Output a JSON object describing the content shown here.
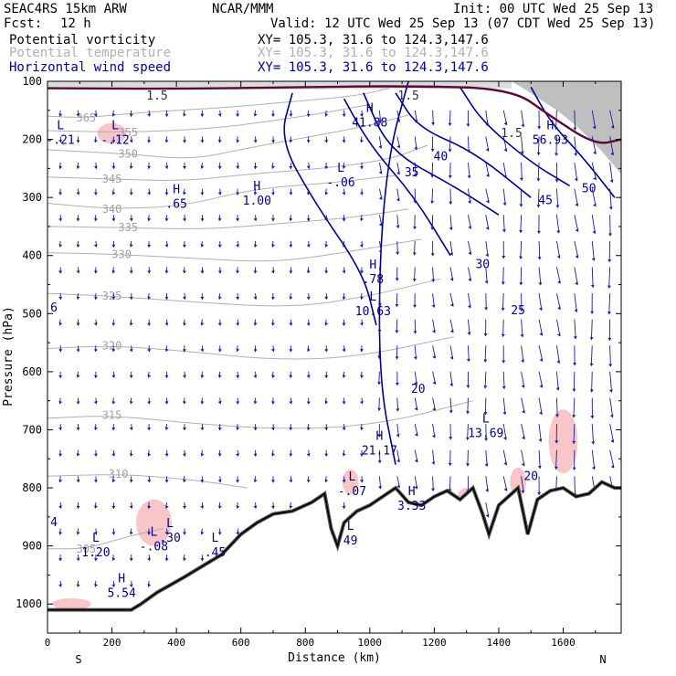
{
  "header": {
    "model": "SEAC4RS 15km ARW",
    "org": "NCAR/MMM",
    "init": "Init: 00 UTC Wed 25 Sep 13",
    "fcst_label": "Fcst:",
    "fcst_value": "12 h",
    "valid": "Valid: 12 UTC Wed 25 Sep 13 (07 CDT Wed 25 Sep 13)",
    "fields": [
      {
        "name": "Potential vorticity",
        "xy": "XY= 105.3, 31.6 to 124.3,147.6",
        "color": "#000000"
      },
      {
        "name": "Potential temperature",
        "xy": "XY= 105.3, 31.6 to 124.3,147.6",
        "color": "#b0b0b0"
      },
      {
        "name": "Horizontal wind speed",
        "xy": "XY= 105.3, 31.6 to 124.3,147.6",
        "color": "#000090"
      }
    ]
  },
  "chart_data": {
    "type": "cross-section",
    "xlabel": "Distance (km)",
    "ylabel": "Pressure (hPa)",
    "xlim": [
      0,
      1780
    ],
    "ylim": [
      1050,
      100
    ],
    "xticks": [
      0,
      200,
      400,
      600,
      800,
      1000,
      1200,
      1400,
      1600
    ],
    "yticks": [
      100,
      200,
      300,
      400,
      500,
      600,
      700,
      800,
      900,
      1000
    ],
    "endpoint_left": "S",
    "endpoint_right": "N",
    "terrain_pressure": [
      [
        0,
        1010
      ],
      [
        260,
        1010
      ],
      [
        290,
        1000
      ],
      [
        340,
        980
      ],
      [
        420,
        955
      ],
      [
        480,
        935
      ],
      [
        540,
        915
      ],
      [
        600,
        880
      ],
      [
        650,
        860
      ],
      [
        700,
        845
      ],
      [
        760,
        840
      ],
      [
        820,
        825
      ],
      [
        860,
        810
      ],
      [
        880,
        870
      ],
      [
        900,
        900
      ],
      [
        920,
        860
      ],
      [
        960,
        840
      ],
      [
        1000,
        830
      ],
      [
        1040,
        815
      ],
      [
        1080,
        800
      ],
      [
        1120,
        825
      ],
      [
        1160,
        830
      ],
      [
        1200,
        815
      ],
      [
        1240,
        805
      ],
      [
        1280,
        820
      ],
      [
        1320,
        800
      ],
      [
        1350,
        845
      ],
      [
        1370,
        880
      ],
      [
        1400,
        830
      ],
      [
        1430,
        815
      ],
      [
        1460,
        800
      ],
      [
        1490,
        880
      ],
      [
        1520,
        820
      ],
      [
        1560,
        805
      ],
      [
        1600,
        800
      ],
      [
        1640,
        815
      ],
      [
        1680,
        810
      ],
      [
        1720,
        790
      ],
      [
        1760,
        800
      ],
      [
        1780,
        800
      ]
    ],
    "theta_contours": [
      {
        "label": "365",
        "points": [
          [
            0,
            160
          ],
          [
            120,
            163
          ],
          [
            300,
            153
          ],
          [
            560,
            145
          ],
          [
            760,
            135
          ],
          [
            960,
            125
          ],
          [
            1060,
            112
          ]
        ]
      },
      {
        "label": "355",
        "points": [
          [
            0,
            185
          ],
          [
            250,
            188
          ],
          [
            500,
            182
          ],
          [
            700,
            168
          ],
          [
            850,
            155
          ],
          [
            1000,
            140
          ]
        ]
      },
      {
        "label": "350",
        "points": [
          [
            0,
            218
          ],
          [
            250,
            225
          ],
          [
            450,
            235
          ],
          [
            620,
            215
          ],
          [
            820,
            195
          ],
          [
            1000,
            176
          ],
          [
            1120,
            158
          ]
        ]
      },
      {
        "label": "345",
        "points": [
          [
            0,
            265
          ],
          [
            200,
            268
          ],
          [
            420,
            272
          ],
          [
            620,
            260
          ],
          [
            860,
            250
          ],
          [
            1060,
            235
          ],
          [
            1180,
            210
          ]
        ]
      },
      {
        "label": "340",
        "points": [
          [
            0,
            310
          ],
          [
            200,
            320
          ],
          [
            420,
            315
          ],
          [
            640,
            285
          ],
          [
            880,
            275
          ],
          [
            1080,
            262
          ]
        ]
      },
      {
        "label": "335",
        "points": [
          [
            0,
            350
          ],
          [
            250,
            352
          ],
          [
            500,
            355
          ],
          [
            720,
            345
          ],
          [
            940,
            335
          ],
          [
            1120,
            320
          ]
        ]
      },
      {
        "label": "330",
        "points": [
          [
            0,
            395
          ],
          [
            230,
            398
          ],
          [
            460,
            405
          ],
          [
            700,
            412
          ],
          [
            920,
            395
          ],
          [
            1160,
            372
          ]
        ]
      },
      {
        "label": "325",
        "points": [
          [
            0,
            465
          ],
          [
            200,
            470
          ],
          [
            450,
            480
          ],
          [
            760,
            490
          ],
          [
            1000,
            470
          ],
          [
            1220,
            440
          ]
        ]
      },
      {
        "label": "320",
        "points": [
          [
            0,
            560
          ],
          [
            200,
            555
          ],
          [
            440,
            565
          ],
          [
            700,
            580
          ],
          [
            960,
            575
          ],
          [
            1260,
            540
          ]
        ]
      },
      {
        "label": "315",
        "points": [
          [
            0,
            680
          ],
          [
            200,
            675
          ],
          [
            460,
            690
          ],
          [
            760,
            700
          ],
          [
            1040,
            690
          ],
          [
            1320,
            650
          ]
        ]
      },
      {
        "label": "310",
        "points": [
          [
            0,
            780
          ],
          [
            220,
            776
          ],
          [
            440,
            785
          ],
          [
            620,
            800
          ]
        ]
      },
      {
        "label": "305",
        "points": [
          [
            0,
            905
          ],
          [
            120,
            905
          ],
          [
            240,
            885
          ],
          [
            360,
            870
          ]
        ]
      }
    ],
    "wind_speed_contours": [
      {
        "label": "20",
        "points": [
          [
            1120,
            100
          ],
          [
            1060,
            220
          ],
          [
            1030,
            400
          ],
          [
            1030,
            620
          ],
          [
            1080,
            760
          ]
        ]
      },
      {
        "label": "25",
        "points": [
          [
            760,
            120
          ],
          [
            720,
            200
          ],
          [
            830,
            310
          ],
          [
            980,
            430
          ],
          [
            1020,
            520
          ]
        ]
      },
      {
        "label": "30",
        "points": [
          [
            920,
            130
          ],
          [
            1000,
            210
          ],
          [
            1140,
            300
          ],
          [
            1250,
            400
          ]
        ]
      },
      {
        "label": "35",
        "points": [
          [
            980,
            120
          ],
          [
            1060,
            220
          ],
          [
            1260,
            280
          ],
          [
            1400,
            330
          ]
        ]
      },
      {
        "label": "40",
        "points": [
          [
            1080,
            120
          ],
          [
            1150,
            180
          ],
          [
            1320,
            220
          ],
          [
            1500,
            300
          ]
        ]
      },
      {
        "label": "45",
        "points": [
          [
            1280,
            110
          ],
          [
            1350,
            170
          ],
          [
            1500,
            240
          ],
          [
            1620,
            280
          ]
        ]
      },
      {
        "label": "50",
        "points": [
          [
            1500,
            110
          ],
          [
            1560,
            170
          ],
          [
            1660,
            230
          ],
          [
            1760,
            300
          ]
        ]
      }
    ],
    "wind_speed_labels": [
      {
        "label": "20",
        "x": 1150,
        "p": 630
      },
      {
        "label": "25",
        "x": 1460,
        "p": 495
      },
      {
        "label": "35",
        "x": 1130,
        "p": 257
      },
      {
        "label": "40",
        "x": 1220,
        "p": 230
      },
      {
        "label": "45",
        "x": 1545,
        "p": 305
      },
      {
        "label": "50",
        "x": 1680,
        "p": 285
      },
      {
        "label": "30",
        "x": 1350,
        "p": 415
      },
      {
        "label": "20",
        "x": 1500,
        "p": 780
      }
    ],
    "pv_values": [
      {
        "label": "1.5",
        "x": 340,
        "p": 125
      },
      {
        "label": "1.5",
        "x": 1120,
        "p": 125
      },
      {
        "label": "1.5",
        "x": 1440,
        "p": 190
      }
    ],
    "extrema": [
      {
        "kind": "L",
        "value": "-.21",
        "x": 40,
        "p": 195
      },
      {
        "kind": "L",
        "value": "-.12",
        "x": 210,
        "p": 195
      },
      {
        "kind": "H",
        "value": ".65",
        "x": 400,
        "p": 305
      },
      {
        "kind": "H",
        "value": "1.00",
        "x": 650,
        "p": 300
      },
      {
        "kind": "L",
        "value": "-.06",
        "x": 910,
        "p": 268
      },
      {
        "kind": "H",
        "value": "41.88",
        "x": 1000,
        "p": 165
      },
      {
        "kind": "H",
        "value": "56.93",
        "x": 1560,
        "p": 195
      },
      {
        "kind": "H",
        "value": ".78",
        "x": 1010,
        "p": 435
      },
      {
        "kind": "L",
        "value": "10.63",
        "x": 1010,
        "p": 490
      },
      {
        "kind": "L",
        "value": "13.69",
        "x": 1360,
        "p": 700
      },
      {
        "kind": "H",
        "value": "21.17",
        "x": 1030,
        "p": 730
      },
      {
        "kind": "L",
        "value": "-.07",
        "x": 945,
        "p": 800
      },
      {
        "kind": "H",
        "value": "3.33",
        "x": 1130,
        "p": 825
      },
      {
        "kind": "L",
        "value": "49",
        "x": 940,
        "p": 885
      },
      {
        "kind": "L",
        "value": "-.08",
        "x": 330,
        "p": 895
      },
      {
        "kind": "L",
        "value": ".30",
        "x": 380,
        "p": 880
      },
      {
        "kind": "L",
        "value": "1.20",
        "x": 150,
        "p": 905
      },
      {
        "kind": "L",
        "value": ".45",
        "x": 520,
        "p": 905
      },
      {
        "kind": "H",
        "value": "5.54",
        "x": 230,
        "p": 975
      }
    ],
    "edge_labels": [
      {
        "label": "6",
        "x": 20,
        "p": 490
      },
      {
        "label": "4",
        "x": 20,
        "p": 860
      }
    ]
  }
}
